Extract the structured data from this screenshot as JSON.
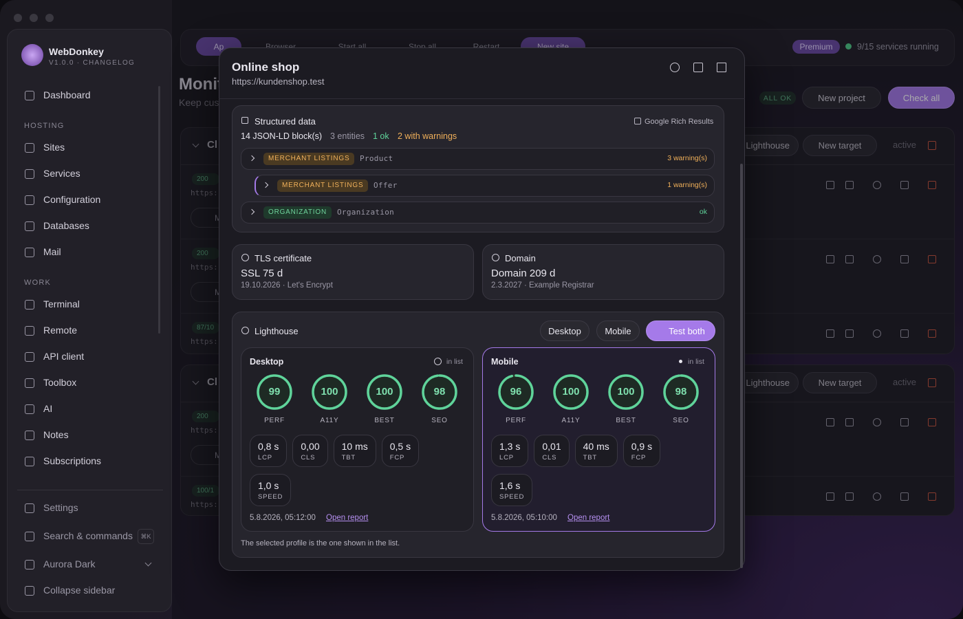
{
  "app": {
    "name": "WebDonkey",
    "version": "V1.0.0 · CHANGELOG"
  },
  "sidebar": {
    "top": [
      "Dashboard"
    ],
    "groups": [
      {
        "title": "HOSTING",
        "items": [
          "Sites",
          "Services",
          "Configuration",
          "Databases",
          "Mail"
        ]
      },
      {
        "title": "WORK",
        "items": [
          "Terminal",
          "Remote",
          "API client",
          "Toolbox",
          "AI",
          "Notes",
          "Subscriptions"
        ]
      }
    ],
    "bottom": [
      "Settings",
      "Search & commands",
      "Aurora Dark",
      "Collapse sidebar"
    ],
    "shortcut": "⌘K"
  },
  "toolbar": {
    "buttons": [
      "Ap",
      "Browser",
      "Start all",
      "Stop all",
      "Restart",
      "New site"
    ],
    "badge": "Premium",
    "status": "9/15 services running"
  },
  "page": {
    "title": "Monit",
    "subtitle": "Keep cus",
    "all_ok": "ALL OK",
    "new_project": "New project",
    "check_all": "Check all",
    "groups": [
      {
        "name": "Cl",
        "lighthouse": "Lighthouse",
        "new_target": "New target",
        "active": "active",
        "rows": [
          {
            "status": "200",
            "url": "https:",
            "chip": "M"
          },
          {
            "status": "200",
            "url": "https:",
            "chip": "M"
          },
          {
            "status": "87/10",
            "url": "https:"
          }
        ]
      },
      {
        "name": "Cl",
        "lighthouse": "Lighthouse",
        "new_target": "New target",
        "active": "active",
        "rows": [
          {
            "status": "200",
            "url": "https:",
            "chip": "M"
          },
          {
            "status": "100/1",
            "url": "https:"
          }
        ]
      }
    ]
  },
  "modal": {
    "title": "Online shop",
    "url": "https://kundenshop.test"
  },
  "structured": {
    "title": "Structured data",
    "link": "Google Rich Results",
    "blocks": "14 JSON-LD block(s)",
    "entities": "3 entities",
    "ok": "1 ok",
    "warnings": "2 with warnings",
    "rows": [
      {
        "tag": "MERCHANT LISTINGS",
        "type": "Product",
        "status": "3 warning(s)",
        "level": "warn",
        "nested": false
      },
      {
        "tag": "MERCHANT LISTINGS",
        "type": "Offer",
        "status": "1 warning(s)",
        "level": "warn",
        "nested": true
      },
      {
        "tag": "ORGANIZATION",
        "type": "Organization",
        "status": "ok",
        "level": "ok",
        "nested": false
      }
    ]
  },
  "tls": {
    "title": "TLS certificate",
    "value": "SSL 75 d",
    "detail": "19.10.2026 · Let's Encrypt"
  },
  "domain": {
    "title": "Domain",
    "value": "Domain 209 d",
    "detail": "2.3.2027 · Example Registrar"
  },
  "lighthouse": {
    "title": "Lighthouse",
    "buttons": [
      "Desktop",
      "Mobile",
      "Test both"
    ],
    "note": "The selected profile is the one shown in the list.",
    "profiles": [
      {
        "name": "Desktop",
        "in_list": "in list",
        "selected": false,
        "scores": [
          {
            "value": 99,
            "label": "PERF"
          },
          {
            "value": 100,
            "label": "A11Y"
          },
          {
            "value": 100,
            "label": "BEST"
          },
          {
            "value": 98,
            "label": "SEO"
          }
        ],
        "metrics": [
          {
            "value": "0,8 s",
            "label": "LCP"
          },
          {
            "value": "0,00",
            "label": "CLS"
          },
          {
            "value": "10 ms",
            "label": "TBT"
          },
          {
            "value": "0,5 s",
            "label": "FCP"
          },
          {
            "value": "1,0 s",
            "label": "SPEED"
          }
        ],
        "date": "5.8.2026, 05:12:00",
        "report": "Open report"
      },
      {
        "name": "Mobile",
        "in_list": "in list",
        "selected": true,
        "scores": [
          {
            "value": 96,
            "label": "PERF"
          },
          {
            "value": 100,
            "label": "A11Y"
          },
          {
            "value": 100,
            "label": "BEST"
          },
          {
            "value": 98,
            "label": "SEO"
          }
        ],
        "metrics": [
          {
            "value": "1,3 s",
            "label": "LCP"
          },
          {
            "value": "0,01",
            "label": "CLS"
          },
          {
            "value": "40 ms",
            "label": "TBT"
          },
          {
            "value": "0,9 s",
            "label": "FCP"
          },
          {
            "value": "1,6 s",
            "label": "SPEED"
          }
        ],
        "date": "5.8.2026, 05:10:00",
        "report": "Open report"
      }
    ]
  }
}
